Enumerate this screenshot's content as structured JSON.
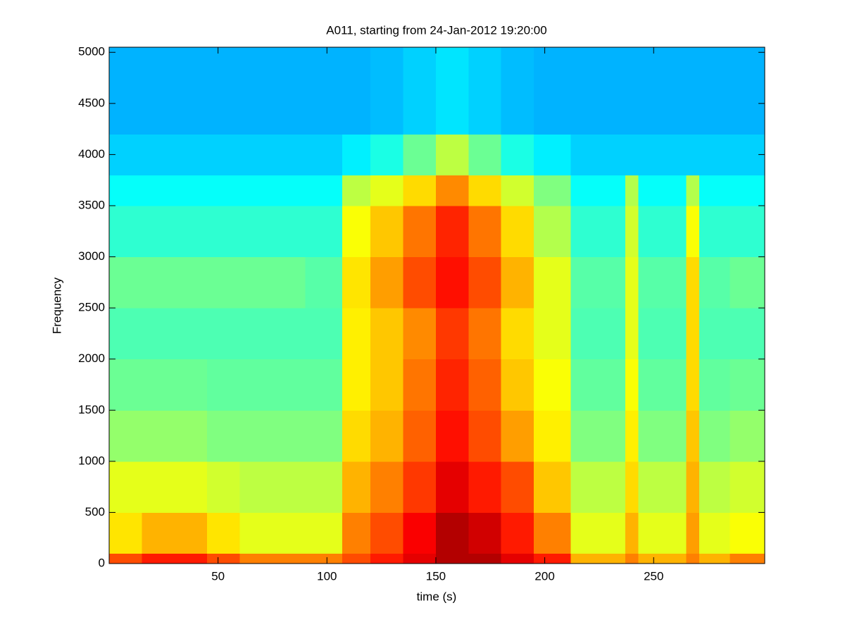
{
  "chart_data": {
    "type": "spectrogram",
    "title": "A011, starting from 24-Jan-2012 19:20:00",
    "xlabel": "time (s)",
    "ylabel": "Frequency",
    "colormap": "jet",
    "x_edges": [
      0,
      15,
      30,
      45,
      60,
      75,
      90,
      107,
      120,
      135,
      150,
      165,
      180,
      195,
      212,
      225,
      237,
      243,
      255,
      265,
      271,
      285,
      301
    ],
    "y_edges": [
      0,
      100,
      500,
      1000,
      1500,
      2000,
      2500,
      3000,
      3500,
      3800,
      4200,
      5050
    ],
    "values": [
      [
        0.8,
        0.85,
        0.85,
        0.8,
        0.75,
        0.75,
        0.75,
        0.8,
        0.85,
        0.9,
        0.95,
        0.95,
        0.9,
        0.85,
        0.7,
        0.7,
        0.75,
        0.7,
        0.7,
        0.75,
        0.7,
        0.75
      ],
      [
        0.65,
        0.7,
        0.7,
        0.65,
        0.6,
        0.6,
        0.6,
        0.75,
        0.8,
        0.88,
        0.95,
        0.92,
        0.85,
        0.75,
        0.6,
        0.6,
        0.7,
        0.6,
        0.6,
        0.72,
        0.6,
        0.62
      ],
      [
        0.6,
        0.6,
        0.6,
        0.58,
        0.56,
        0.56,
        0.56,
        0.7,
        0.75,
        0.82,
        0.9,
        0.85,
        0.8,
        0.68,
        0.56,
        0.56,
        0.66,
        0.56,
        0.56,
        0.7,
        0.56,
        0.58
      ],
      [
        0.52,
        0.52,
        0.52,
        0.5,
        0.5,
        0.5,
        0.5,
        0.66,
        0.7,
        0.78,
        0.86,
        0.8,
        0.72,
        0.64,
        0.5,
        0.5,
        0.64,
        0.5,
        0.5,
        0.68,
        0.5,
        0.52
      ],
      [
        0.48,
        0.48,
        0.48,
        0.47,
        0.47,
        0.47,
        0.47,
        0.64,
        0.68,
        0.76,
        0.84,
        0.78,
        0.68,
        0.62,
        0.47,
        0.47,
        0.62,
        0.47,
        0.47,
        0.66,
        0.47,
        0.48
      ],
      [
        0.45,
        0.45,
        0.45,
        0.45,
        0.45,
        0.45,
        0.45,
        0.64,
        0.68,
        0.74,
        0.82,
        0.76,
        0.66,
        0.6,
        0.45,
        0.45,
        0.6,
        0.45,
        0.45,
        0.66,
        0.45,
        0.45
      ],
      [
        0.48,
        0.48,
        0.48,
        0.48,
        0.48,
        0.48,
        0.46,
        0.65,
        0.72,
        0.8,
        0.86,
        0.8,
        0.7,
        0.6,
        0.46,
        0.46,
        0.6,
        0.46,
        0.46,
        0.66,
        0.46,
        0.48
      ],
      [
        0.42,
        0.42,
        0.42,
        0.42,
        0.42,
        0.42,
        0.42,
        0.62,
        0.68,
        0.76,
        0.84,
        0.76,
        0.66,
        0.55,
        0.42,
        0.42,
        0.58,
        0.42,
        0.42,
        0.62,
        0.42,
        0.42
      ],
      [
        0.38,
        0.38,
        0.38,
        0.38,
        0.38,
        0.38,
        0.38,
        0.56,
        0.6,
        0.66,
        0.74,
        0.66,
        0.58,
        0.5,
        0.38,
        0.38,
        0.55,
        0.38,
        0.38,
        0.55,
        0.38,
        0.38
      ],
      [
        0.33,
        0.33,
        0.33,
        0.33,
        0.33,
        0.33,
        0.33,
        0.36,
        0.4,
        0.48,
        0.56,
        0.48,
        0.4,
        0.36,
        0.33,
        0.33,
        0.33,
        0.33,
        0.33,
        0.33,
        0.33,
        0.33
      ],
      [
        0.3,
        0.3,
        0.3,
        0.3,
        0.3,
        0.3,
        0.3,
        0.3,
        0.31,
        0.33,
        0.35,
        0.33,
        0.31,
        0.3,
        0.3,
        0.3,
        0.3,
        0.3,
        0.3,
        0.3,
        0.3,
        0.3
      ]
    ],
    "xlim": [
      0,
      301
    ],
    "ylim": [
      0,
      5050
    ],
    "xticks": [
      50,
      100,
      150,
      200,
      250
    ],
    "yticks": [
      0,
      500,
      1000,
      1500,
      2000,
      2500,
      3000,
      3500,
      4000,
      4500,
      5000
    ]
  }
}
